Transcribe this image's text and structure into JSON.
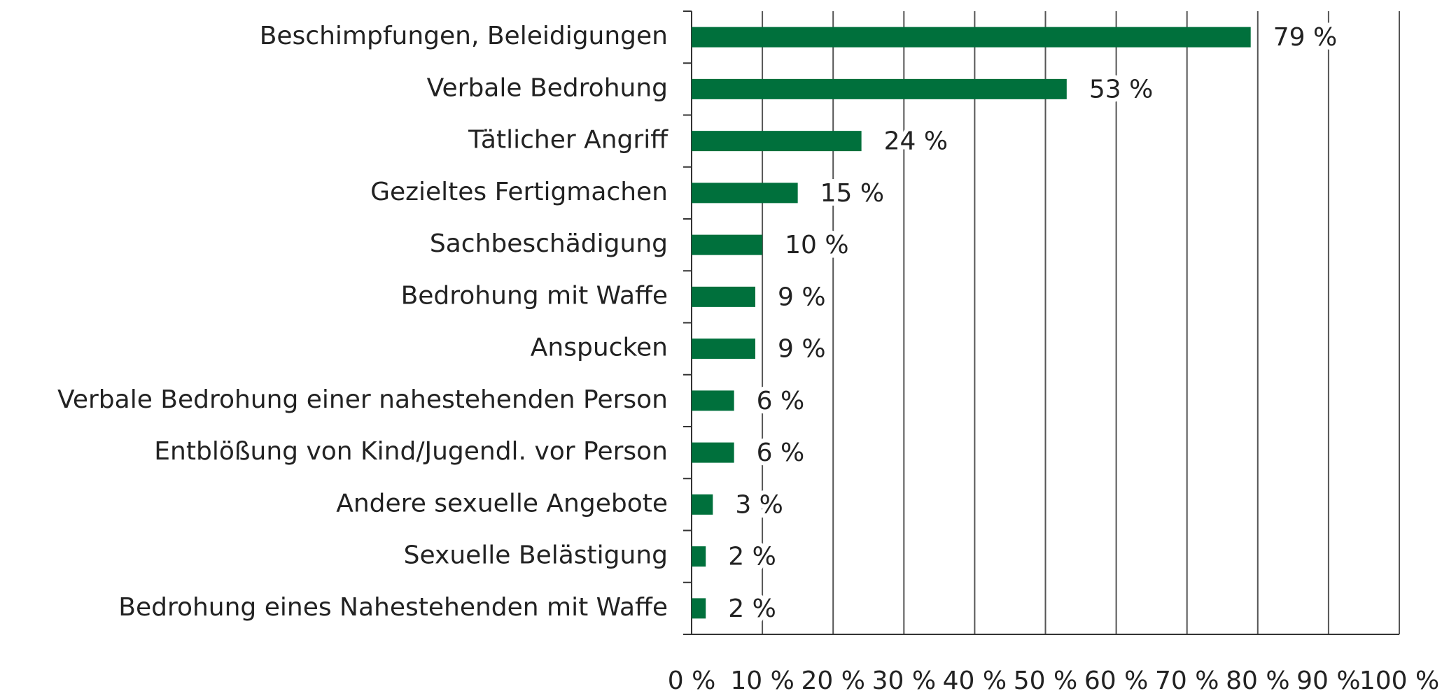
{
  "chart_data": {
    "type": "hbar",
    "categories": [
      "Beschimpfungen, Beleidigungen",
      "Verbale Bedrohung",
      "Tätlicher Angriff",
      "Gezieltes Fertigmachen",
      "Sachbeschädigung",
      "Bedrohung mit Waffe",
      "Anspucken",
      "Verbale Bedrohung einer nahestehenden Person",
      "Entblößung von Kind/Jugendl. vor Person",
      "Andere sexuelle Angebote",
      "Sexuelle Belästigung",
      "Bedrohung eines Nahestehenden mit Waffe"
    ],
    "values": [
      79,
      53,
      24,
      15,
      10,
      9,
      9,
      6,
      6,
      3,
      2,
      2
    ],
    "value_labels": [
      "79 %",
      "53 %",
      "24 %",
      "15 %",
      "10 %",
      "9 %",
      "9 %",
      "6 %",
      "6 %",
      "3 %",
      "2 %",
      "2 %"
    ],
    "color": "#00703c",
    "xlim": [
      0,
      100
    ],
    "xticks": [
      {
        "value": 0,
        "label": "0 %"
      },
      {
        "value": 10,
        "label": "10 %"
      },
      {
        "value": 20,
        "label": "20 %"
      },
      {
        "value": 30,
        "label": "30 %"
      },
      {
        "value": 40,
        "label": "40 %"
      },
      {
        "value": 50,
        "label": "50 %"
      },
      {
        "value": 60,
        "label": "60 %"
      },
      {
        "value": 70,
        "label": "70 %"
      },
      {
        "value": 80,
        "label": "80 %"
      },
      {
        "value": 90,
        "label": "90 %"
      },
      {
        "value": 100,
        "label": "100 %"
      }
    ],
    "grid": true
  }
}
